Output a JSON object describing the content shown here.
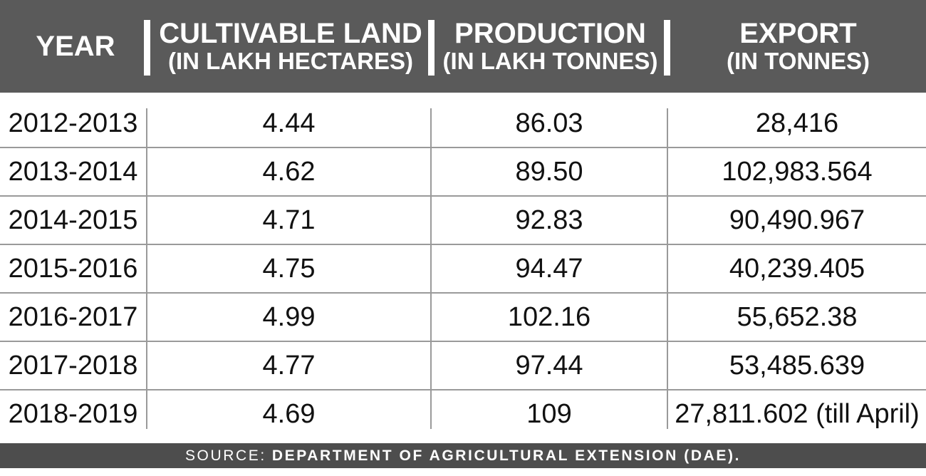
{
  "chart_data": {
    "type": "table",
    "columns": [
      {
        "line1": "YEAR",
        "line2": ""
      },
      {
        "line1": "CULTIVABLE LAND",
        "line2": "(IN LAKH HECTARES)"
      },
      {
        "line1": "PRODUCTION",
        "line2": "(IN LAKH TONNES)"
      },
      {
        "line1": "EXPORT",
        "line2": "(IN TONNES)"
      }
    ],
    "rows": [
      [
        "2012-2013",
        "4.44",
        "86.03",
        "28,416"
      ],
      [
        "2013-2014",
        "4.62",
        "89.50",
        "102,983.564"
      ],
      [
        "2014-2015",
        "4.71",
        "92.83",
        "90,490.967"
      ],
      [
        "2015-2016",
        "4.75",
        "94.47",
        "40,239.405"
      ],
      [
        "2016-2017",
        "4.99",
        "102.16",
        "55,652.38"
      ],
      [
        "2017-2018",
        "4.77",
        "97.44",
        "53,485.639"
      ],
      [
        "2018-2019",
        "4.69",
        "109",
        "27,811.602 (till April)"
      ]
    ]
  },
  "footer": {
    "lead": "SOURCE:",
    "source": "DEPARTMENT OF AGRICULTURAL EXTENSION (DAE)."
  },
  "colors": {
    "header_bg": "#5a5a5a",
    "footer_bg": "#4d4d4d",
    "rule": "#9a9a9a"
  }
}
